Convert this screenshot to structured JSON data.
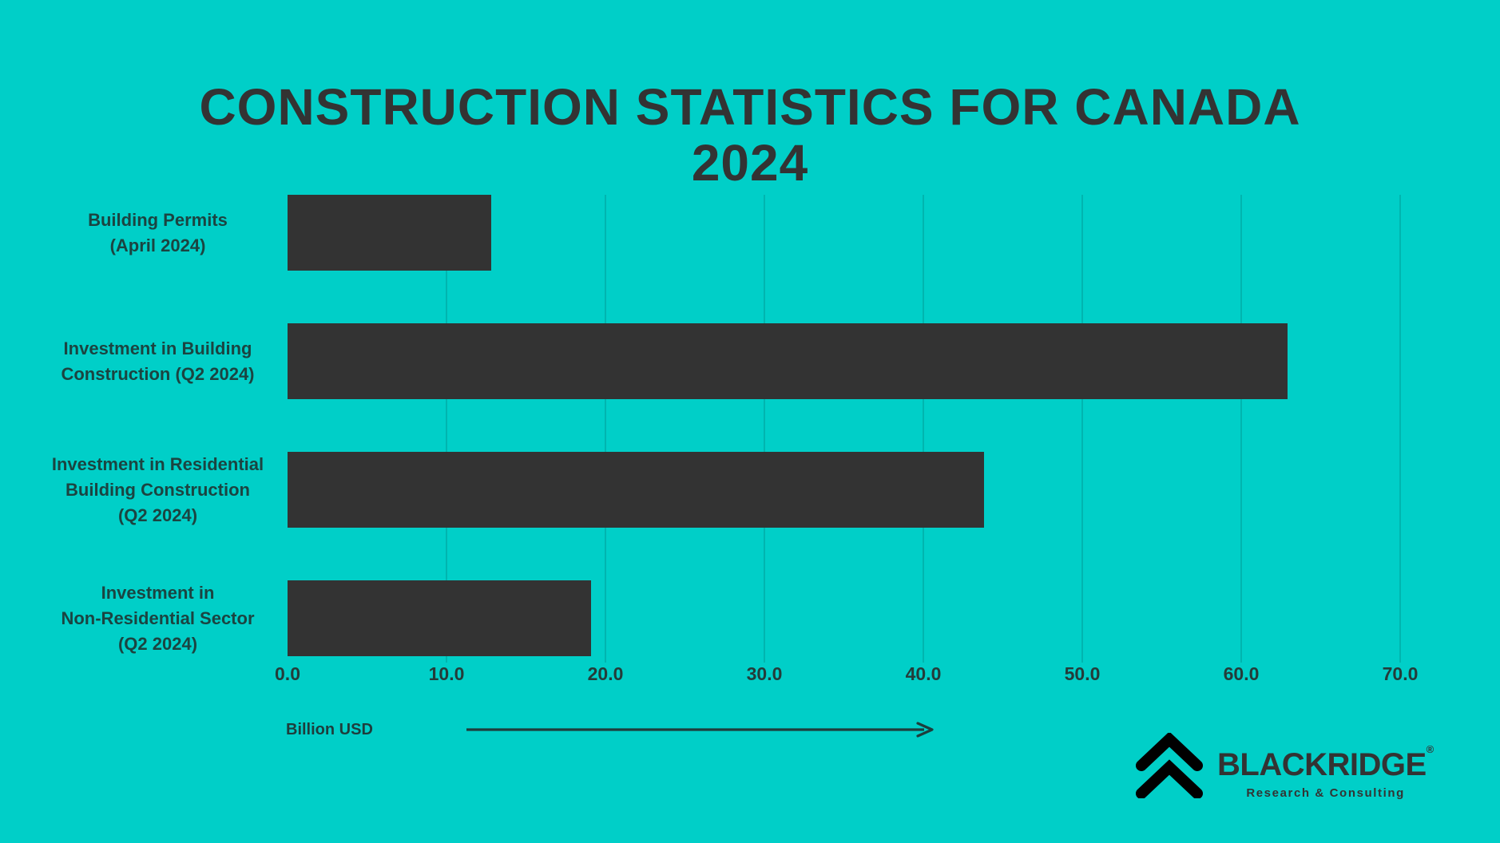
{
  "page": {
    "background_color": "#00CFC8",
    "gridline_color": "rgba(0,90,88,0.22)"
  },
  "title": {
    "line1": "CONSTRUCTION STATISTICS FOR CANADA",
    "line2": "2024",
    "color": "#333333"
  },
  "chart_data": {
    "type": "bar",
    "orientation": "horizontal",
    "title": "Construction Statistics for Canada 2024",
    "categories": [
      "Building Permits (April 2024)",
      "Investment in Building Construction (Q2 2024)",
      "Investment in Residential Building Construction (Q2 2024)",
      "Investment in Non-Residential Sector (Q2 2024)"
    ],
    "category_label_lines": [
      [
        "Building Permits",
        "(April 2024)"
      ],
      [
        "Investment in Building",
        "Construction (Q2 2024)"
      ],
      [
        "Investment in Residential",
        "Building Construction",
        "(Q2 2024)"
      ],
      [
        "Investment in",
        "Non-Residential Sector",
        "(Q2 2024)"
      ]
    ],
    "values": [
      12.8,
      62.9,
      43.8,
      19.1
    ],
    "xlim": [
      0,
      70
    ],
    "x_ticks": [
      0,
      10,
      20,
      30,
      40,
      50,
      60,
      70
    ],
    "x_tick_labels": [
      "0.0",
      "10.0",
      "20.0",
      "30.0",
      "40.0",
      "50.0",
      "60.0",
      "70.0"
    ],
    "xlabel": "Billion USD",
    "bar_color": "#333333",
    "label_color": "#1B4441",
    "tick_color": "#243C3A",
    "axis_annotation_color": "#1E3D3C",
    "grid": true,
    "legend": "none"
  },
  "logo": {
    "icon": "double-chevron-up-icon",
    "icon_color": "#000000",
    "brand": "BLACKRIDGE",
    "registered_mark": "®",
    "tagline": "Research & Consulting",
    "text_color": "#333333"
  }
}
